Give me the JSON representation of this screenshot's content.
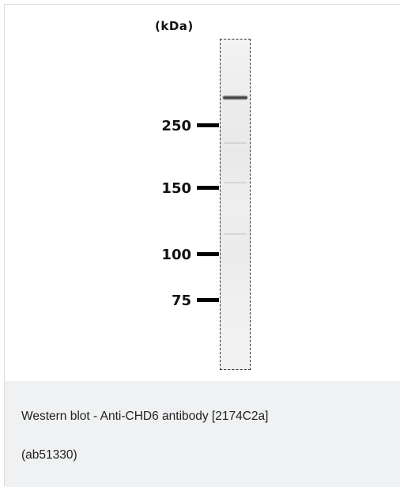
{
  "figure": {
    "unit_label": "(kDa)",
    "markers": [
      {
        "label": "250"
      },
      {
        "label": "150"
      },
      {
        "label": "100"
      },
      {
        "label": "75"
      }
    ]
  },
  "caption": {
    "line1": "Western blot - Anti-CHD6 antibody [2174C2a]",
    "line2": "(ab51330)"
  },
  "colors": {
    "caption_background": "#f0f1f2",
    "border": "#dcdcdc"
  }
}
